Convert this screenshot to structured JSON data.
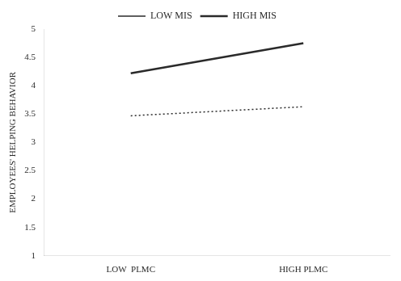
{
  "chart_data": {
    "type": "line",
    "categories": [
      "LOW  PLMC",
      "HIGH PLMC"
    ],
    "series": [
      {
        "name": "LOW MIS",
        "color": "#2a2a2a",
        "line_style": "dotted",
        "values": [
          3.47,
          3.63
        ]
      },
      {
        "name": "HIGH MIS",
        "color": "#2a2a2a",
        "line_style": "solid",
        "values": [
          4.22,
          4.75
        ]
      }
    ],
    "ylabel": "EMPLOYEES' HELPING BEHAVIOR",
    "ylim": [
      1,
      5
    ],
    "yticks": [
      1,
      1.5,
      2,
      2.5,
      3,
      3.5,
      4,
      4.5,
      5
    ],
    "grid": false,
    "legend": "top"
  }
}
